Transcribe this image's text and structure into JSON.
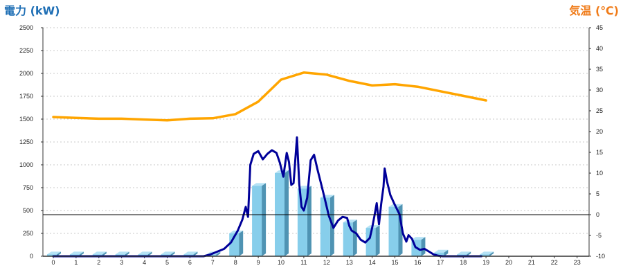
{
  "chart_data": {
    "type": "bar",
    "left_axis": {
      "title": "電力 (kW)",
      "ticks": [
        "0",
        "250",
        "500",
        "750",
        "1000",
        "1250",
        "1500",
        "1750",
        "2000",
        "2250",
        "2500"
      ],
      "range": [
        0,
        2500
      ]
    },
    "right_axis": {
      "title": "気温 (℃)",
      "ticks": [
        "-10",
        "-5",
        "0",
        "5",
        "10",
        "15",
        "20",
        "25",
        "30",
        "35",
        "40",
        "45"
      ],
      "range": [
        -10,
        45
      ]
    },
    "x_axis": {
      "categories": [
        "0",
        "1",
        "2",
        "3",
        "4",
        "5",
        "6",
        "7",
        "8",
        "9",
        "10",
        "11",
        "12",
        "13",
        "14",
        "15",
        "16",
        "17",
        "18",
        "19",
        "20",
        "21",
        "22",
        "23"
      ]
    },
    "grid": "horizontal-dashed",
    "zero_line_at_right_axis": 0,
    "series": [
      {
        "kind": "bar",
        "axis": "left",
        "color": "#87CEEB",
        "values": [
          20,
          20,
          20,
          20,
          20,
          20,
          20,
          20,
          250,
          770,
          910,
          740,
          640,
          370,
          310,
          540,
          180,
          40,
          20,
          20,
          0,
          0,
          0,
          0
        ]
      },
      {
        "kind": "line",
        "axis": "left",
        "color": "#000099",
        "x": [
          0,
          1,
          2,
          3,
          4,
          5,
          6,
          6.6,
          6.9,
          7.2,
          7.5,
          7.8,
          8.1,
          8.3,
          8.45,
          8.55,
          8.65,
          8.8,
          9.0,
          9.2,
          9.4,
          9.6,
          9.8,
          9.95,
          10.1,
          10.25,
          10.35,
          10.45,
          10.55,
          10.7,
          10.8,
          10.9,
          11.0,
          11.15,
          11.3,
          11.45,
          11.6,
          11.75,
          11.9,
          12.1,
          12.3,
          12.5,
          12.7,
          12.9,
          13.0,
          13.1,
          13.3,
          13.5,
          13.7,
          13.9,
          14.0,
          14.1,
          14.2,
          14.3,
          14.4,
          14.5,
          14.55,
          14.65,
          14.8,
          15.0,
          15.2,
          15.35,
          15.5,
          15.6,
          15.75,
          15.9,
          16.1,
          16.3,
          16.5,
          16.7,
          16.9,
          17.1,
          17.5,
          18,
          18.5,
          18.8
        ],
        "values": [
          0,
          0,
          0,
          0,
          0,
          0,
          0,
          0,
          20,
          50,
          80,
          150,
          280,
          400,
          540,
          430,
          1000,
          1120,
          1150,
          1060,
          1120,
          1160,
          1130,
          1020,
          870,
          1130,
          1030,
          780,
          800,
          1300,
          790,
          540,
          500,
          640,
          1050,
          1110,
          950,
          800,
          650,
          440,
          310,
          390,
          430,
          420,
          330,
          280,
          250,
          180,
          150,
          200,
          310,
          440,
          580,
          350,
          580,
          760,
          960,
          820,
          670,
          560,
          460,
          250,
          160,
          230,
          190,
          100,
          70,
          80,
          50,
          20,
          5,
          0,
          0,
          0,
          0,
          0
        ]
      },
      {
        "kind": "line",
        "axis": "right",
        "color": "#FFA500",
        "x": [
          0,
          1,
          2,
          3,
          4,
          5,
          6,
          7,
          8,
          9,
          10,
          11,
          12,
          13,
          14,
          15,
          16,
          17,
          18,
          19
        ],
        "values": [
          23.5,
          23.3,
          23.1,
          23.1,
          22.9,
          22.7,
          23.1,
          23.2,
          24.2,
          27.2,
          32.5,
          34.2,
          33.7,
          32.2,
          31.1,
          31.4,
          30.8,
          29.7,
          28.6,
          27.5
        ]
      }
    ]
  }
}
